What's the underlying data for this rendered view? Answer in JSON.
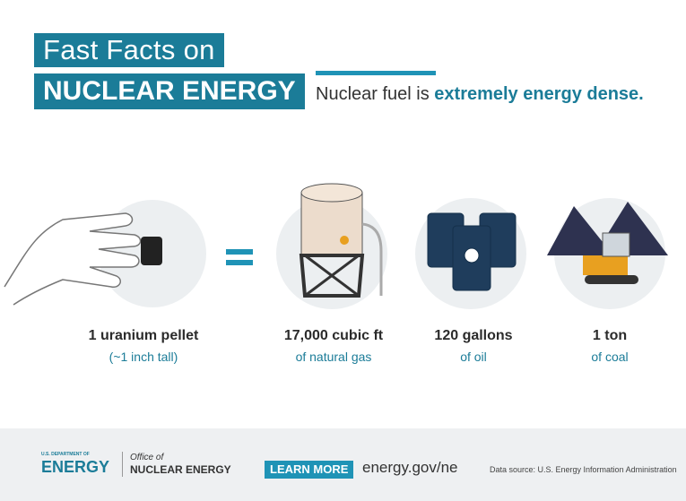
{
  "header": {
    "title_line1": "Fast Facts on",
    "title_line2": "NUCLEAR ENERGY",
    "tagline": "Nuclear fuel is",
    "tagline_emphasis": "extremely energy dense."
  },
  "items": [
    {
      "title": "1 uranium pellet",
      "subtitle": "(~1 inch tall)"
    },
    {
      "title": "17,000 cubic ft",
      "subtitle": "of natural gas"
    },
    {
      "title": "120 gallons",
      "subtitle": "of oil"
    },
    {
      "title": "1 ton",
      "subtitle": "of coal"
    }
  ],
  "footer": {
    "dept": "U.S. DEPARTMENT OF",
    "energy": "ENERGY",
    "office": "Office of",
    "office_name": "NUCLEAR ENERGY",
    "button": "LEARN MORE",
    "url": "energy.gov/ne",
    "source": "Data source: U.S. Energy Information Administration"
  }
}
